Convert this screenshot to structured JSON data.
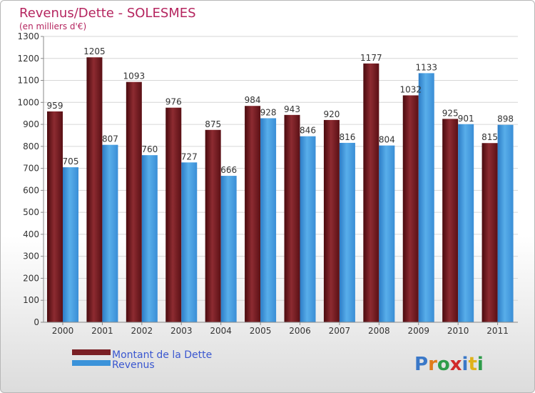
{
  "chart_data": {
    "type": "bar",
    "title": "Revenus/Dette - SOLESMES",
    "subtitle": "(en milliers d'€)",
    "categories": [
      "2000",
      "2001",
      "2002",
      "2003",
      "2004",
      "2005",
      "2006",
      "2007",
      "2008",
      "2009",
      "2010",
      "2011"
    ],
    "series": [
      {
        "name": "Montant de la Dette",
        "color": "#7a1f25",
        "values": [
          959,
          1205,
          1093,
          976,
          875,
          984,
          943,
          920,
          1177,
          1032,
          925,
          815
        ]
      },
      {
        "name": "Revenus",
        "color": "#3b93da",
        "values": [
          705,
          807,
          760,
          727,
          666,
          928,
          846,
          816,
          804,
          1133,
          901,
          898
        ]
      }
    ],
    "ylim": [
      0,
      1300
    ],
    "yticks": [
      0,
      100,
      200,
      300,
      400,
      500,
      600,
      700,
      800,
      900,
      1000,
      1100,
      1200,
      1300
    ],
    "grid": true,
    "legend_position": "bottom-left",
    "watermark": "Proxiti"
  }
}
